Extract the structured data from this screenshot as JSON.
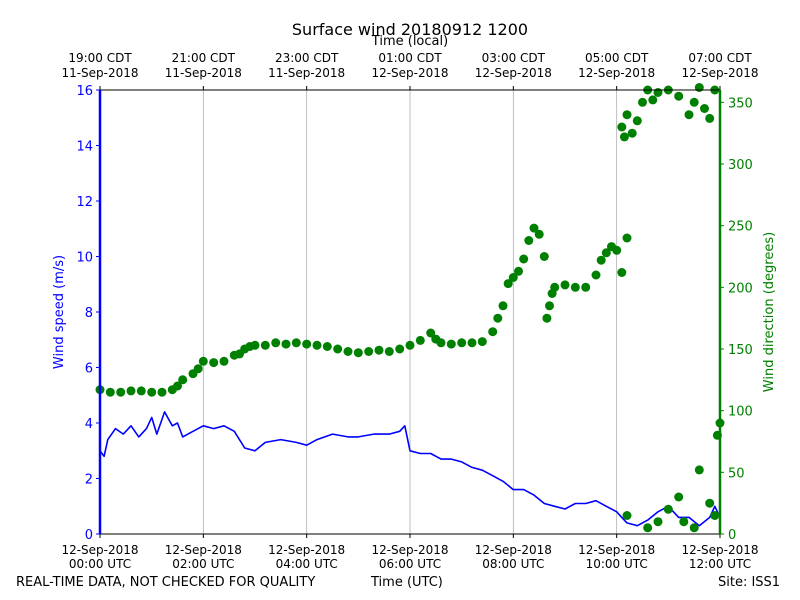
{
  "title": "Surface wind 20180912 1200",
  "top_axis_label": "Time (local)",
  "footer": {
    "disclaimer": "REAL-TIME DATA, NOT CHECKED FOR QUALITY",
    "xlabel": "Time (UTC)",
    "site": "Site: ISS1"
  },
  "colors": {
    "speed": "#0000ff",
    "direction": "#008000",
    "grid": "#b0b0b0",
    "axis": "#000000"
  },
  "chart_data": {
    "type": "line",
    "title": "Surface wind 20180912 1200",
    "xlabel": "Time (UTC)",
    "ylabel": "Wind speed (m/s)",
    "y2label": "Wind direction (degrees)",
    "top_xlabel": "Time (local)",
    "xlim_hours": [
      0,
      12
    ],
    "ylim": [
      0,
      16
    ],
    "y2lim": [
      0,
      360
    ],
    "grid": "vertical",
    "yticks": [
      0,
      2,
      4,
      6,
      8,
      10,
      12,
      14,
      16
    ],
    "y2ticks": [
      0,
      50,
      100,
      150,
      200,
      250,
      300,
      350
    ],
    "bottom_ticks": [
      {
        "hour": 0,
        "date": "12-Sep-2018",
        "time": "00:00 UTC"
      },
      {
        "hour": 2,
        "date": "12-Sep-2018",
        "time": "02:00 UTC"
      },
      {
        "hour": 4,
        "date": "12-Sep-2018",
        "time": "04:00 UTC"
      },
      {
        "hour": 6,
        "date": "12-Sep-2018",
        "time": "06:00 UTC"
      },
      {
        "hour": 8,
        "date": "12-Sep-2018",
        "time": "08:00 UTC"
      },
      {
        "hour": 10,
        "date": "12-Sep-2018",
        "time": "10:00 UTC"
      },
      {
        "hour": 12,
        "date": "12-Sep-2018",
        "time": "12:00 UTC"
      }
    ],
    "top_ticks": [
      {
        "hour": 0,
        "time": "19:00 CDT",
        "date": "11-Sep-2018"
      },
      {
        "hour": 2,
        "time": "21:00 CDT",
        "date": "11-Sep-2018"
      },
      {
        "hour": 4,
        "time": "23:00 CDT",
        "date": "11-Sep-2018"
      },
      {
        "hour": 6,
        "time": "01:00 CDT",
        "date": "12-Sep-2018"
      },
      {
        "hour": 8,
        "time": "03:00 CDT",
        "date": "12-Sep-2018"
      },
      {
        "hour": 10,
        "time": "05:00 CDT",
        "date": "12-Sep-2018"
      },
      {
        "hour": 12,
        "time": "07:00 CDT",
        "date": "12-Sep-2018"
      }
    ],
    "series": [
      {
        "name": "Wind speed",
        "axis": "left",
        "style": "line",
        "x": [
          0,
          0.08,
          0.15,
          0.3,
          0.45,
          0.6,
          0.75,
          0.9,
          1.0,
          1.1,
          1.25,
          1.4,
          1.5,
          1.6,
          1.8,
          2.0,
          2.2,
          2.4,
          2.6,
          2.8,
          3.0,
          3.2,
          3.5,
          3.8,
          4.0,
          4.2,
          4.5,
          4.8,
          5.0,
          5.3,
          5.6,
          5.8,
          5.9,
          6.0,
          6.2,
          6.4,
          6.6,
          6.8,
          7.0,
          7.2,
          7.4,
          7.6,
          7.8,
          8.0,
          8.2,
          8.4,
          8.6,
          8.8,
          9.0,
          9.2,
          9.4,
          9.6,
          9.8,
          10.0,
          10.1,
          10.2,
          10.4,
          10.6,
          10.8,
          11.0,
          11.2,
          11.4,
          11.6,
          11.8,
          11.9,
          12.0
        ],
        "y": [
          3.0,
          2.8,
          3.4,
          3.8,
          3.6,
          3.9,
          3.5,
          3.8,
          4.2,
          3.6,
          4.4,
          3.9,
          4.0,
          3.5,
          3.7,
          3.9,
          3.8,
          3.9,
          3.7,
          3.1,
          3.0,
          3.3,
          3.4,
          3.3,
          3.2,
          3.4,
          3.6,
          3.5,
          3.5,
          3.6,
          3.6,
          3.7,
          3.9,
          3.0,
          2.9,
          2.9,
          2.7,
          2.7,
          2.6,
          2.4,
          2.3,
          2.1,
          1.9,
          1.6,
          1.6,
          1.4,
          1.1,
          1.0,
          0.9,
          1.1,
          1.1,
          1.2,
          1.0,
          0.8,
          0.6,
          0.4,
          0.3,
          0.5,
          0.8,
          1.0,
          0.6,
          0.6,
          0.3,
          0.6,
          1.0,
          0.6
        ]
      },
      {
        "name": "Wind direction",
        "axis": "right",
        "style": "markers",
        "x": [
          0.0,
          0.2,
          0.4,
          0.6,
          0.8,
          1.0,
          1.2,
          1.4,
          1.5,
          1.6,
          1.8,
          1.9,
          2.0,
          2.2,
          2.4,
          2.6,
          2.7,
          2.8,
          2.9,
          3.0,
          3.2,
          3.4,
          3.6,
          3.8,
          4.0,
          4.2,
          4.4,
          4.6,
          4.8,
          5.0,
          5.2,
          5.4,
          5.6,
          5.8,
          6.0,
          6.2,
          6.4,
          6.5,
          6.6,
          6.8,
          7.0,
          7.2,
          7.4,
          7.6,
          7.7,
          7.8,
          7.9,
          8.0,
          8.1,
          8.2,
          8.3,
          8.4,
          8.5,
          8.6,
          8.65,
          8.7,
          8.75,
          8.8,
          9.0,
          9.2,
          9.4,
          9.6,
          9.7,
          9.8,
          9.9,
          10.0,
          10.1,
          10.2,
          10.15,
          10.1,
          10.2,
          10.3,
          10.4,
          10.5,
          10.6,
          10.7,
          10.8,
          11.0,
          11.2,
          11.4,
          11.5,
          11.6,
          11.7,
          11.8,
          11.9,
          10.2,
          10.6,
          10.8,
          11.0,
          11.2,
          11.3,
          11.5,
          11.6,
          11.8,
          11.9,
          11.95,
          12.0
        ],
        "y": [
          117,
          115,
          115,
          116,
          116,
          115,
          115,
          117,
          120,
          125,
          130,
          134,
          140,
          139,
          140,
          145,
          146,
          150,
          152,
          153,
          153,
          155,
          154,
          155,
          154,
          153,
          152,
          150,
          148,
          147,
          148,
          149,
          148,
          150,
          153,
          157,
          163,
          158,
          155,
          154,
          155,
          155,
          156,
          164,
          175,
          185,
          203,
          208,
          213,
          223,
          238,
          248,
          243,
          225,
          175,
          185,
          195,
          200,
          202,
          200,
          200,
          210,
          222,
          228,
          233,
          230,
          212,
          240,
          322,
          330,
          340,
          325,
          335,
          350,
          360,
          352,
          358,
          360,
          355,
          340,
          350,
          362,
          345,
          337,
          360,
          15,
          5,
          10,
          20,
          30,
          10,
          5,
          52,
          25,
          15,
          80,
          90
        ]
      }
    ]
  }
}
